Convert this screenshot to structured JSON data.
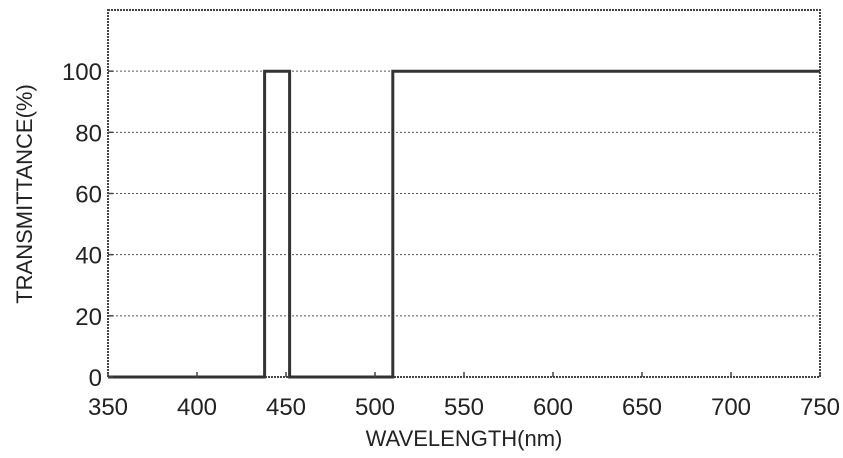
{
  "chart_data": {
    "type": "line",
    "title": "",
    "xlabel": "WAVELENGTH(nm)",
    "ylabel": "TRANSMITTANCE(%)",
    "xlim": [
      350,
      750
    ],
    "ylim": [
      0,
      120
    ],
    "x_ticks": [
      350,
      400,
      450,
      500,
      550,
      600,
      650,
      700,
      750
    ],
    "y_ticks": [
      0,
      20,
      40,
      60,
      80,
      100
    ],
    "x_tick_labels": [
      "350",
      "400",
      "450",
      "500",
      "550",
      "600",
      "650",
      "700",
      "750"
    ],
    "y_tick_labels": [
      "0",
      "20",
      "40",
      "60",
      "80",
      "100"
    ],
    "grid": true,
    "legend": "none",
    "series": [
      {
        "x": [
          350,
          438,
          438,
          452,
          452,
          510,
          510,
          750
        ],
        "y": [
          0,
          0,
          100,
          100,
          0,
          0,
          100,
          100
        ]
      }
    ],
    "colors": {
      "line": "#333333",
      "grid": "#555555",
      "frame": "#444444"
    }
  }
}
